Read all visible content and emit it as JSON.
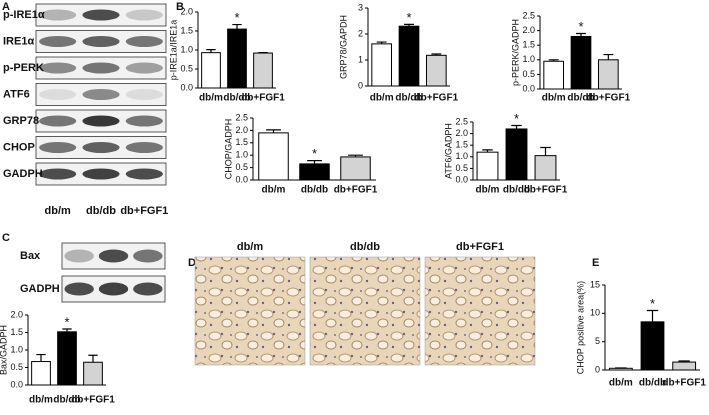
{
  "panels": {
    "letters": [
      "A",
      "B",
      "C",
      "D",
      "E"
    ],
    "blot_a": {
      "rows": [
        "p-IRE1α",
        "IRE1α",
        "p-PERK",
        "ATF6",
        "GRP78",
        "CHOP",
        "GADPH"
      ],
      "lanes": [
        "db/m",
        "db/db",
        "db+FGF1"
      ]
    },
    "blot_c": {
      "rows": [
        "Bax",
        "GADPH"
      ]
    },
    "images_d": {
      "titles": [
        "db/m",
        "db/db",
        "db+FGF1"
      ]
    }
  },
  "chart_data": [
    {
      "type": "bar",
      "y_label": "p-IRE1a/IRE1a",
      "categories": [
        "db/m",
        "db/db",
        "db+FGF1"
      ],
      "values": [
        0.93,
        1.55,
        0.92
      ],
      "errors": [
        0.08,
        0.12,
        0.01
      ],
      "marks": [
        null,
        "*",
        null
      ],
      "colors": [
        "#ffffff",
        "#000000",
        "#d3d3d3"
      ],
      "ylim": [
        0,
        2
      ],
      "yticks": [
        {
          "value": 0,
          "label": "0.0"
        },
        0.5,
        {
          "value": 1,
          "label": "1.0"
        },
        1.5,
        {
          "value": 2,
          "label": "2.0"
        }
      ]
    },
    {
      "type": "bar",
      "y_label": "GRP78/GAPDH",
      "categories": [
        "db/m",
        "db/db",
        "db+FGF1"
      ],
      "values": [
        1.62,
        2.3,
        1.18
      ],
      "errors": [
        0.07,
        0.07,
        0.05
      ],
      "marks": [
        null,
        "*",
        null
      ],
      "colors": [
        "#ffffff",
        "#000000",
        "#d3d3d3"
      ],
      "ylim": [
        0,
        3
      ],
      "yticks": [
        0,
        1,
        2,
        3
      ]
    },
    {
      "type": "bar",
      "y_label": "p-PERK/GADPH",
      "categories": [
        "db/m",
        "db/db",
        "db+FGF1"
      ],
      "values": [
        0.95,
        1.8,
        1.0
      ],
      "errors": [
        0.05,
        0.1,
        0.18
      ],
      "marks": [
        null,
        "*",
        null
      ],
      "colors": [
        "#ffffff",
        "#000000",
        "#d3d3d3"
      ],
      "ylim": [
        0,
        2.5
      ],
      "yticks": [
        {
          "value": 0,
          "label": "0.0"
        },
        0.5,
        {
          "value": 1,
          "label": "1.0"
        },
        1.5,
        {
          "value": 2,
          "label": "2.0"
        },
        2.5
      ]
    },
    {
      "type": "bar",
      "y_label": "CHOP/GADPH",
      "categories": [
        "db/m",
        "db/db",
        "db+FGF1"
      ],
      "values": [
        1.9,
        0.65,
        0.93
      ],
      "errors": [
        0.12,
        0.13,
        0.07
      ],
      "marks": [
        null,
        "*",
        null
      ],
      "colors": [
        "#ffffff",
        "#000000",
        "#d3d3d3"
      ],
      "ylim": [
        0,
        2.5
      ],
      "yticks": [
        {
          "value": 0,
          "label": "0.0"
        },
        0.5,
        {
          "value": 1,
          "label": "1.0"
        },
        1.5,
        {
          "value": 2,
          "label": "2.0"
        },
        2.5
      ]
    },
    {
      "type": "bar",
      "y_label": "ATF6/GADPH",
      "categories": [
        "db/m",
        "db/db",
        "db+FGF1"
      ],
      "values": [
        1.2,
        2.2,
        1.05
      ],
      "errors": [
        0.1,
        0.15,
        0.35
      ],
      "marks": [
        null,
        "*",
        null
      ],
      "colors": [
        "#ffffff",
        "#000000",
        "#d3d3d3"
      ],
      "ylim": [
        0,
        2.5
      ],
      "yticks": [
        {
          "value": 0,
          "label": "0.0"
        },
        0.5,
        {
          "value": 1,
          "label": "1.0"
        },
        1.5,
        {
          "value": 2,
          "label": "2.0"
        },
        2.5
      ]
    },
    {
      "type": "bar",
      "y_label": "Bax/GADPH",
      "categories": [
        "db/m",
        "db/db",
        "db+FGF1"
      ],
      "values": [
        0.67,
        1.52,
        0.65
      ],
      "errors": [
        0.2,
        0.08,
        0.2
      ],
      "marks": [
        null,
        "*",
        null
      ],
      "colors": [
        "#ffffff",
        "#000000",
        "#d3d3d3"
      ],
      "ylim": [
        0,
        2
      ],
      "yticks": [
        {
          "value": 0,
          "label": "0.0"
        },
        0.5,
        {
          "value": 1,
          "label": "1.0"
        },
        1.5,
        {
          "value": 2,
          "label": "2.0"
        }
      ]
    },
    {
      "type": "bar",
      "y_label": "CHOP positive area(%)",
      "categories": [
        "db/m",
        "db/db",
        "db+FGF1"
      ],
      "values": [
        0.3,
        8.5,
        1.4
      ],
      "errors": [
        0.05,
        2,
        0.2
      ],
      "marks": [
        null,
        "*",
        null
      ],
      "colors": [
        "#ffffff",
        "#000000",
        "#d3d3d3"
      ],
      "ylim": [
        0,
        15
      ],
      "yticks": [
        0,
        5,
        10,
        15
      ]
    }
  ]
}
